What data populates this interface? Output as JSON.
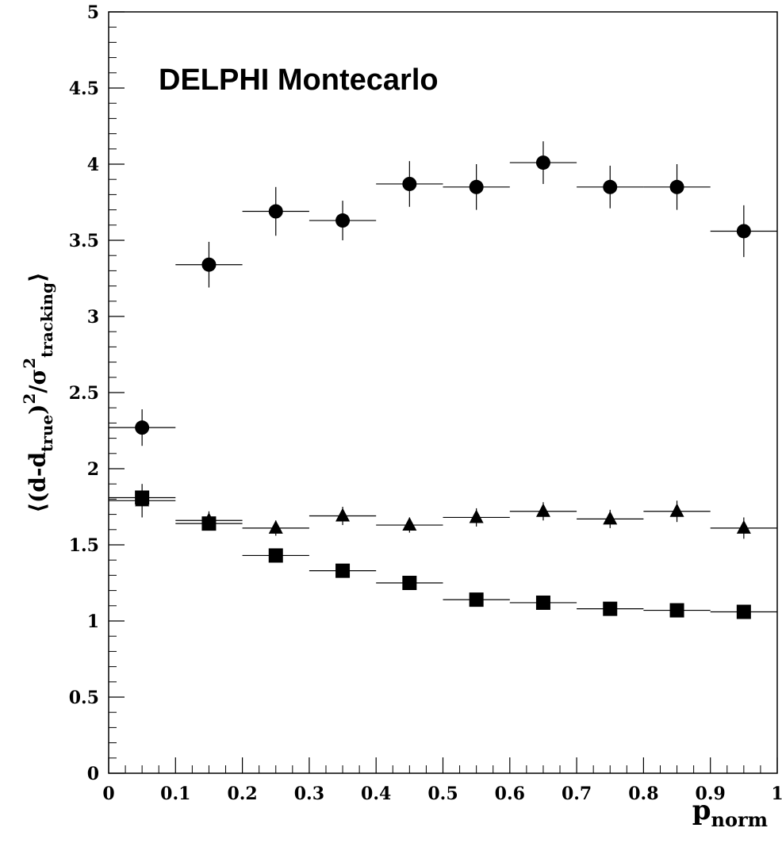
{
  "chart_data": {
    "type": "scatter",
    "title": "DELPHI Montecarlo",
    "xlabel": {
      "main": "p",
      "sub": "norm"
    },
    "ylabel": {
      "parts": [
        {
          "t": "⟨(d-d",
          "s": "n"
        },
        {
          "t": "true",
          "s": "sub"
        },
        {
          "t": ")",
          "s": "n"
        },
        {
          "t": "2",
          "s": "sup"
        },
        {
          "t": "/σ",
          "s": "n"
        },
        {
          "t": "2",
          "s": "sup"
        },
        {
          "t": "tracking",
          "s": "sub"
        },
        {
          "t": "⟩",
          "s": "n"
        }
      ]
    },
    "xlim": [
      0,
      1
    ],
    "ylim": [
      0,
      5
    ],
    "x_ticks": [
      "0",
      "0.1",
      "0.2",
      "0.3",
      "0.4",
      "0.5",
      "0.6",
      "0.7",
      "0.8",
      "0.9",
      "1"
    ],
    "y_ticks": [
      "0",
      "0.5",
      "1",
      "1.5",
      "2",
      "2.5",
      "3",
      "3.5",
      "4",
      "4.5",
      "5"
    ],
    "grid": false,
    "bin_halfwidth": 0.05,
    "series": [
      {
        "marker": "circle",
        "x": [
          0.05,
          0.15,
          0.25,
          0.35,
          0.45,
          0.55,
          0.65,
          0.75,
          0.85,
          0.95
        ],
        "y": [
          2.27,
          3.34,
          3.69,
          3.63,
          3.87,
          3.85,
          4.01,
          3.85,
          3.85,
          3.56
        ],
        "yerr": [
          0.12,
          0.15,
          0.16,
          0.13,
          0.15,
          0.15,
          0.14,
          0.14,
          0.15,
          0.17
        ]
      },
      {
        "marker": "triangle",
        "x": [
          0.05,
          0.15,
          0.25,
          0.35,
          0.45,
          0.55,
          0.65,
          0.75,
          0.85,
          0.95
        ],
        "y": [
          1.79,
          1.66,
          1.61,
          1.69,
          1.63,
          1.68,
          1.72,
          1.67,
          1.72,
          1.61
        ],
        "yerr": [
          0.11,
          0.06,
          0.05,
          0.06,
          0.05,
          0.06,
          0.06,
          0.06,
          0.07,
          0.07
        ]
      },
      {
        "marker": "square",
        "x": [
          0.05,
          0.15,
          0.25,
          0.35,
          0.45,
          0.55,
          0.65,
          0.75,
          0.85,
          0.95
        ],
        "y": [
          1.81,
          1.64,
          1.43,
          1.33,
          1.25,
          1.14,
          1.12,
          1.08,
          1.07,
          1.06
        ],
        "yerr": [
          0.04,
          0.04,
          0.03,
          0.03,
          0.03,
          0.03,
          0.03,
          0.03,
          0.03,
          0.03
        ]
      }
    ]
  }
}
